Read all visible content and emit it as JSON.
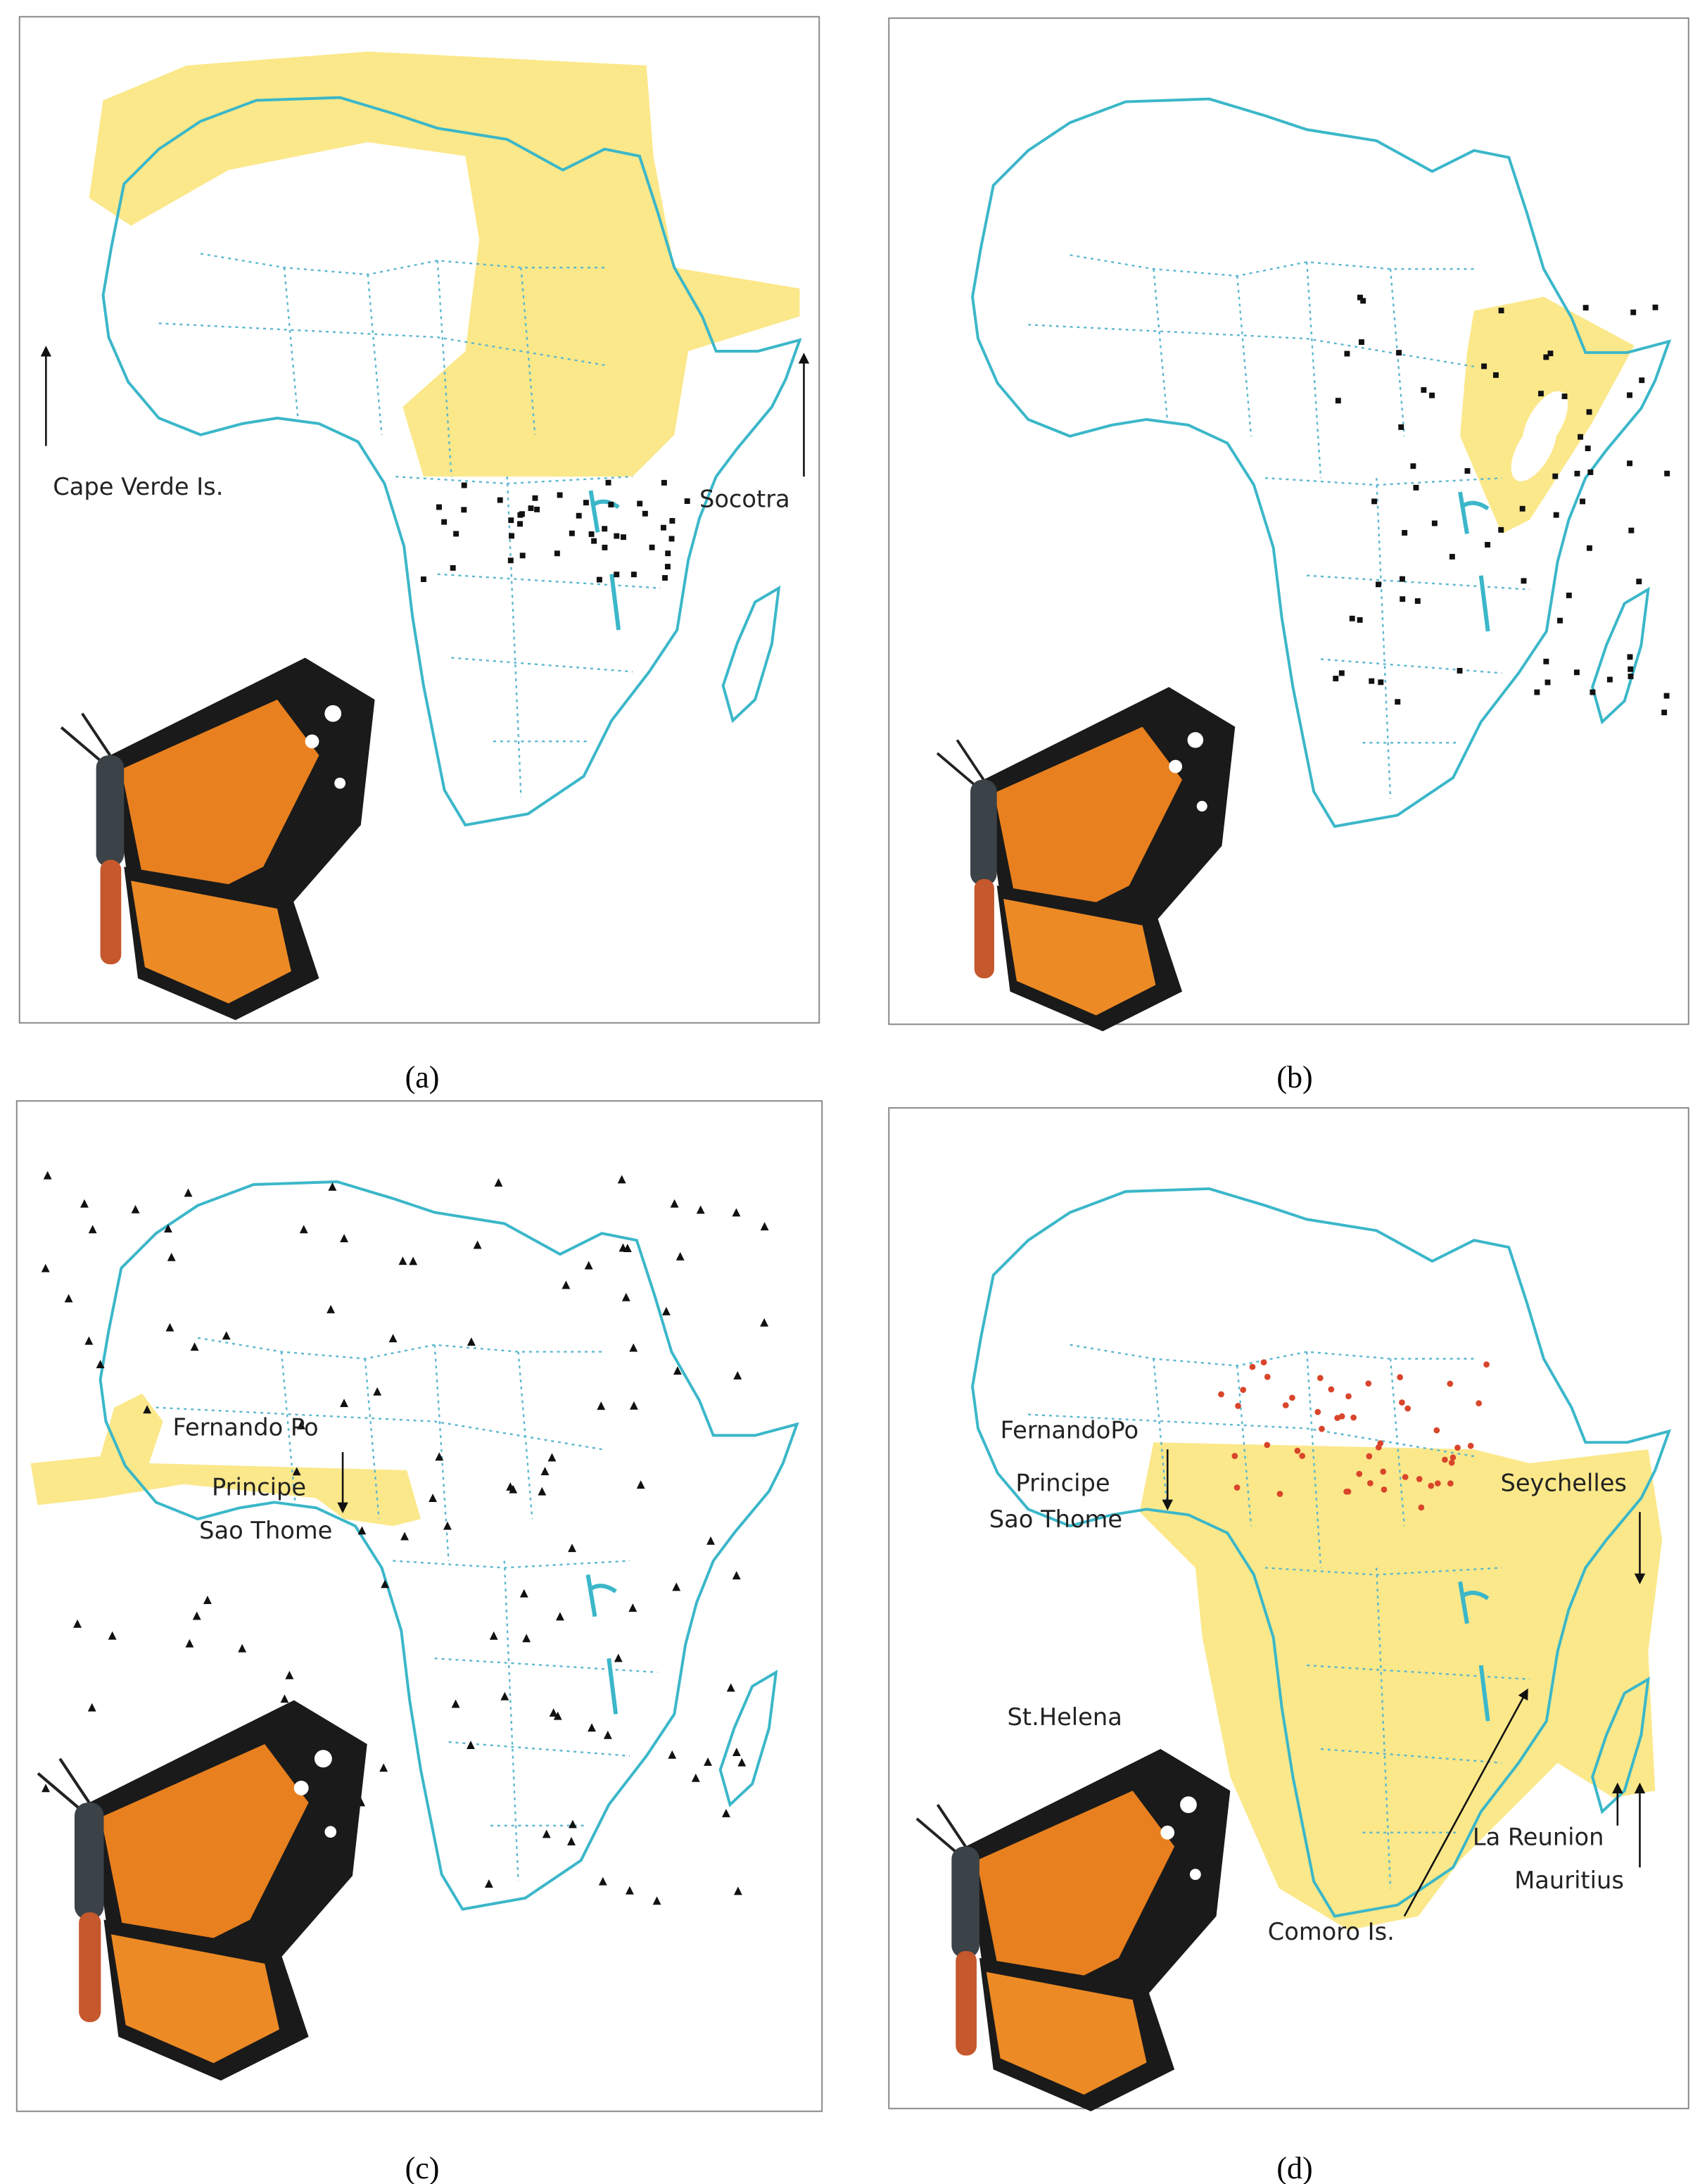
{
  "panels": [
    {
      "caption": "(a)",
      "labels": [
        "Cape Verde Is.",
        "Socotra"
      ]
    },
    {
      "caption": "(b)"
    },
    {
      "caption": "(c)",
      "labels": [
        "Fernando Po",
        "Principe",
        "Sao Thome"
      ]
    },
    {
      "caption": "(d)",
      "labels": [
        "FernandoPo",
        "Principe",
        "Sao Thome",
        "Seychelles",
        "St.Helena",
        "La Reunion",
        "Mauritius",
        "Comoro Is."
      ]
    }
  ]
}
